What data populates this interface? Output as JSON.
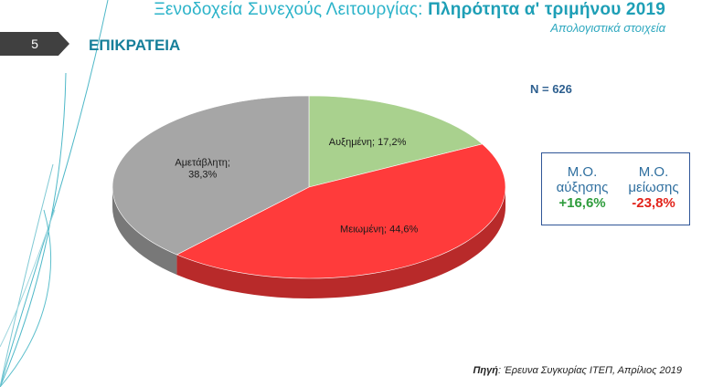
{
  "header": {
    "title_part1": "Ξενοδοχεία Συνεχούς Λειτουργίας: ",
    "title_part2": "Πληρότητα α' τριμήνου 2019",
    "subtitle": "Απολογιστικά στοιχεία"
  },
  "slide_number": "5",
  "section_title": "ΕΠΙΚΡΑΤΕΙΑ",
  "sample_size": "N = 626",
  "chart_data": {
    "type": "pie",
    "labels": [
      "Αυξημένη",
      "Μειωμένη",
      "Αμετάβλητη"
    ],
    "values": [
      17.2,
      44.6,
      38.3
    ],
    "display_labels": [
      "Αυξημένη; 17,2%",
      "Μειωμένη; 44,6%",
      "Αμετάβλητη;|38,3%"
    ],
    "colors": [
      "#a9d18e",
      "#ff3b3b",
      "#a6a6a6"
    ]
  },
  "averages": {
    "increase_label_1": "Μ.Ο.",
    "increase_label_2": "αύξησης",
    "increase_value": "+16,6%",
    "decrease_label_1": "Μ.Ο.",
    "decrease_label_2": "μείωσης",
    "decrease_value": "-23,8%"
  },
  "source": {
    "label": "Πηγή",
    "text": ": Έρευνα Συγκυρίας ΙΤΕΠ, Απρίλιος 2019"
  }
}
